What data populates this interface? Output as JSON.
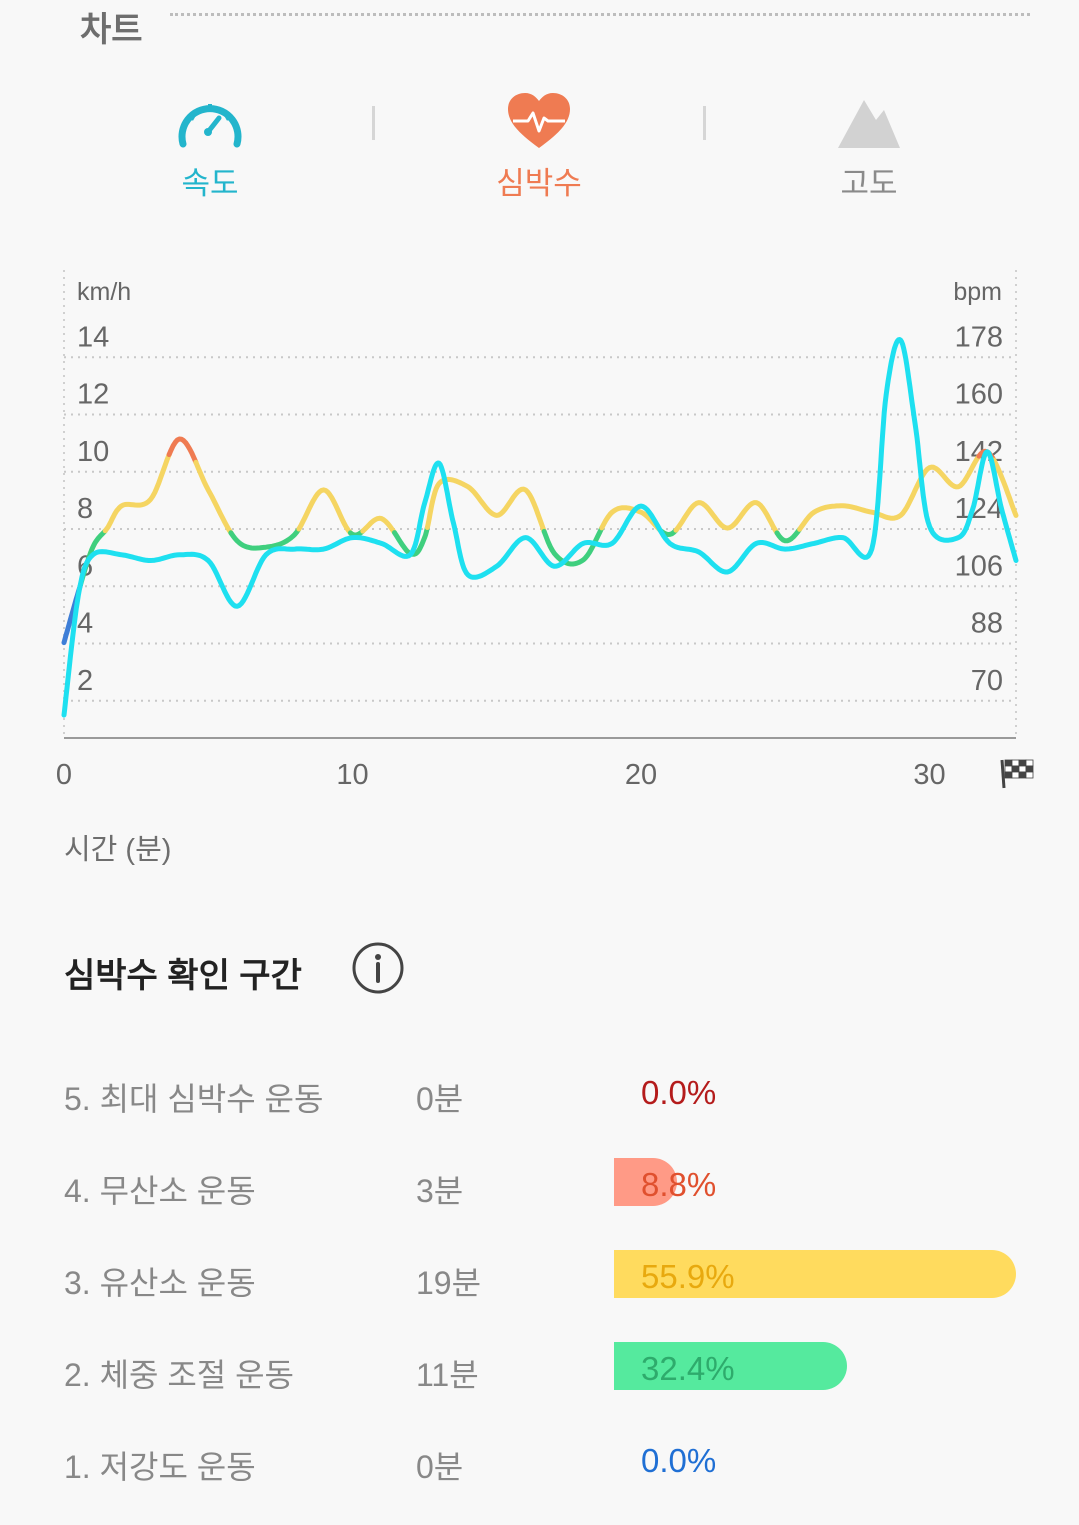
{
  "header": {
    "title": "차트"
  },
  "tabs": [
    {
      "label": "속도",
      "icon": "speedometer-icon",
      "color": "#23b5cc",
      "active": true
    },
    {
      "label": "심박수",
      "icon": "heart-pulse-icon",
      "color": "#ef7b52",
      "active": true
    },
    {
      "label": "고도",
      "icon": "mountain-icon",
      "color": "#8a8a8a",
      "active": false
    }
  ],
  "chart_data": {
    "type": "line",
    "xlabel": "시간 (분)",
    "x_ticks": [
      0,
      10,
      20,
      30
    ],
    "xlim": [
      0,
      33
    ],
    "left_axis": {
      "unit": "km/h",
      "ticks": [
        2,
        4,
        6,
        8,
        10,
        12,
        14
      ],
      "ylim": [
        0,
        16
      ]
    },
    "right_axis": {
      "unit": "bpm",
      "ticks": [
        70,
        88,
        106,
        124,
        142,
        160,
        178
      ],
      "ylim": [
        52,
        196
      ]
    },
    "grid": true,
    "finish_icon": "checkered-flag-icon",
    "series": [
      {
        "axis": "left",
        "color": "#1ee0f0",
        "x": [
          0,
          0.5,
          1,
          2,
          3,
          4,
          5,
          6,
          7,
          8,
          9,
          10,
          11,
          12,
          12.5,
          13,
          13.5,
          14,
          15,
          16,
          17,
          18,
          19,
          20,
          21,
          22,
          23,
          24,
          25,
          26,
          27,
          28,
          28.5,
          29,
          29.5,
          30,
          31,
          31.5,
          32,
          32.5,
          33
        ],
        "y": [
          0.8,
          5.0,
          6.4,
          6.4,
          6.2,
          6.4,
          6.2,
          4.6,
          6.4,
          6.6,
          6.6,
          7.0,
          6.8,
          6.4,
          8.2,
          9.6,
          7.5,
          5.7,
          6.0,
          7.0,
          6.0,
          6.8,
          6.8,
          8.1,
          6.8,
          6.5,
          5.8,
          6.8,
          6.6,
          6.8,
          7.0,
          6.6,
          12.0,
          13.9,
          11.0,
          7.4,
          7.0,
          8.0,
          10.0,
          8.0,
          6.2
        ]
      },
      {
        "axis": "right",
        "color_zones": [
          {
            "from": 0,
            "to": 117,
            "color": "#3fcf7e"
          },
          {
            "from": 117,
            "to": 140,
            "color": "#f5d562"
          },
          {
            "from": 140,
            "to": 250,
            "color": "#ef7b52"
          }
        ],
        "low_color": "#3e7ed7",
        "x": [
          0,
          0.5,
          1,
          1.5,
          2,
          3,
          4,
          5,
          6,
          7,
          8,
          9,
          10,
          11,
          12,
          12.5,
          13,
          14,
          15,
          16,
          17,
          18,
          19,
          20,
          21,
          22,
          23,
          24,
          25,
          26,
          27,
          28,
          29,
          30,
          31,
          32,
          33
        ],
        "y": [
          82,
          98,
          112,
          118,
          125,
          127,
          146,
          130,
          114,
          112,
          116,
          130,
          116,
          121,
          110,
          115,
          132,
          131,
          122,
          130,
          110,
          108,
          123,
          123,
          116,
          126,
          118,
          126,
          114,
          123,
          125,
          123,
          122,
          137,
          131,
          142,
          122
        ]
      }
    ]
  },
  "zones": {
    "title": "심박수 확인 구간",
    "info_icon": "info-circle-icon",
    "rows": [
      {
        "name": "5. 최대 심박수 운동",
        "duration": "0분",
        "percent": "0.0%",
        "value": 0.0,
        "bar_color": "#f08a7a",
        "text_color": "#b41b1b"
      },
      {
        "name": "4. 무산소 운동",
        "duration": "3분",
        "percent": "8.8%",
        "value": 8.8,
        "bar_color": "#ff9a86",
        "text_color": "#e0502e"
      },
      {
        "name": "3. 유산소 운동",
        "duration": "19분",
        "percent": "55.9%",
        "value": 55.9,
        "bar_color": "#ffdb5e",
        "text_color": "#e8a90e"
      },
      {
        "name": "2. 체중 조절 운동",
        "duration": "11분",
        "percent": "32.4%",
        "value": 32.4,
        "bar_color": "#55ea9e",
        "text_color": "#2eab6c"
      },
      {
        "name": "1. 저강도 운동",
        "duration": "0분",
        "percent": "0.0%",
        "value": 0.0,
        "bar_color": "#4a86e8",
        "text_color": "#1f6fd4"
      }
    ]
  }
}
